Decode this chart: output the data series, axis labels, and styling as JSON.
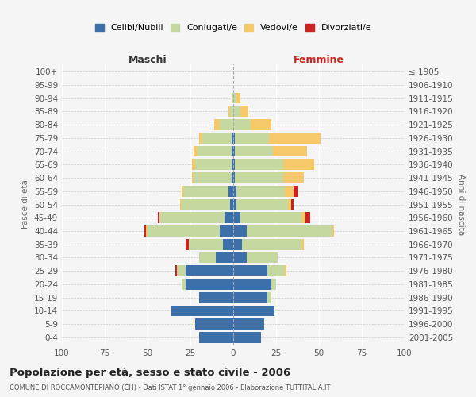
{
  "age_groups_bottom_to_top": [
    "0-4",
    "5-9",
    "10-14",
    "15-19",
    "20-24",
    "25-29",
    "30-34",
    "35-39",
    "40-44",
    "45-49",
    "50-54",
    "55-59",
    "60-64",
    "65-69",
    "70-74",
    "75-79",
    "80-84",
    "85-89",
    "90-94",
    "95-99",
    "100+"
  ],
  "birth_years_bottom_to_top": [
    "2001-2005",
    "1996-2000",
    "1991-1995",
    "1986-1990",
    "1981-1985",
    "1976-1980",
    "1971-1975",
    "1966-1970",
    "1961-1965",
    "1956-1960",
    "1951-1955",
    "1946-1950",
    "1941-1945",
    "1936-1940",
    "1931-1935",
    "1926-1930",
    "1921-1925",
    "1916-1920",
    "1911-1915",
    "1906-1910",
    "≤ 1905"
  ],
  "males_celibe": [
    20,
    22,
    36,
    20,
    28,
    28,
    10,
    6,
    8,
    5,
    2,
    3,
    1,
    1,
    1,
    1,
    0,
    0,
    0,
    0,
    0
  ],
  "males_coniugato": [
    0,
    0,
    0,
    0,
    2,
    5,
    10,
    20,
    42,
    38,
    28,
    26,
    22,
    21,
    20,
    17,
    8,
    2,
    1,
    0,
    0
  ],
  "males_vedovo": [
    0,
    0,
    0,
    0,
    0,
    0,
    0,
    0,
    1,
    0,
    1,
    1,
    1,
    2,
    2,
    2,
    3,
    1,
    0,
    0,
    0
  ],
  "males_divorziato": [
    0,
    0,
    0,
    0,
    0,
    1,
    0,
    2,
    1,
    1,
    0,
    0,
    0,
    0,
    0,
    0,
    0,
    0,
    0,
    0,
    0
  ],
  "females_nubile": [
    16,
    18,
    24,
    20,
    22,
    20,
    8,
    5,
    8,
    4,
    2,
    2,
    1,
    1,
    1,
    1,
    0,
    0,
    0,
    0,
    0
  ],
  "females_coniugata": [
    0,
    0,
    0,
    2,
    3,
    10,
    18,
    35,
    50,
    36,
    30,
    28,
    28,
    28,
    22,
    20,
    10,
    4,
    2,
    0,
    0
  ],
  "females_vedova": [
    0,
    0,
    0,
    0,
    0,
    1,
    0,
    1,
    1,
    2,
    2,
    5,
    12,
    18,
    20,
    30,
    12,
    5,
    2,
    0,
    0
  ],
  "females_divorziata": [
    0,
    0,
    0,
    0,
    0,
    0,
    0,
    0,
    0,
    3,
    1,
    3,
    0,
    0,
    0,
    0,
    0,
    0,
    0,
    0,
    0
  ],
  "color_celibe": "#3d6fa8",
  "color_coniugato": "#c5d8a0",
  "color_vedovo": "#f5c96a",
  "color_divorziato": "#cc2222",
  "legend_labels": [
    "Celibi/Nubili",
    "Coniugati/e",
    "Vedovi/e",
    "Divorziati/e"
  ],
  "title": "Popolazione per età, sesso e stato civile - 2006",
  "subtitle": "COMUNE DI ROCCAMONTEPIANO (CH) - Dati ISTAT 1° gennaio 2006 - Elaborazione TUTTITALIA.IT",
  "label_maschi": "Maschi",
  "label_femmine": "Femmine",
  "ylabel_left": "Fasce di età",
  "ylabel_right": "Anni di nascita",
  "xlim": 100,
  "bg_color": "#f5f5f5"
}
